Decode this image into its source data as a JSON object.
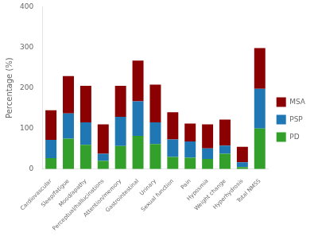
{
  "chart_data": {
    "type": "bar",
    "stacked": true,
    "categories": [
      "Cardiovascular",
      "Sleep/fatigue",
      "Mood/apathy",
      "Perceptual/hallucinations",
      "Attention/memory",
      "Gastrointestinal",
      "Urinary",
      "Sexual function",
      "Pain",
      "Hyposmia",
      "Weight change",
      "Hyperhydrosis",
      "Total NMSS"
    ],
    "series": [
      {
        "name": "PD",
        "color": "#33A02C",
        "values": [
          27,
          75,
          60,
          20,
          57,
          82,
          62,
          30,
          28,
          25,
          38,
          5,
          100
        ]
      },
      {
        "name": "PSP",
        "color": "#1F78B4",
        "values": [
          45,
          62,
          55,
          18,
          72,
          85,
          53,
          43,
          40,
          26,
          20,
          12,
          98
        ]
      },
      {
        "name": "MSA",
        "color": "#8B0000",
        "values": [
          73,
          92,
          90,
          72,
          76,
          100,
          93,
          67,
          44,
          59,
          64,
          38,
          100
        ]
      }
    ],
    "ylabel": "Percentage (%)",
    "ylim": [
      0,
      400
    ],
    "yticks": [
      0,
      100,
      200,
      300,
      400
    ],
    "grid": false,
    "legend": "right"
  }
}
